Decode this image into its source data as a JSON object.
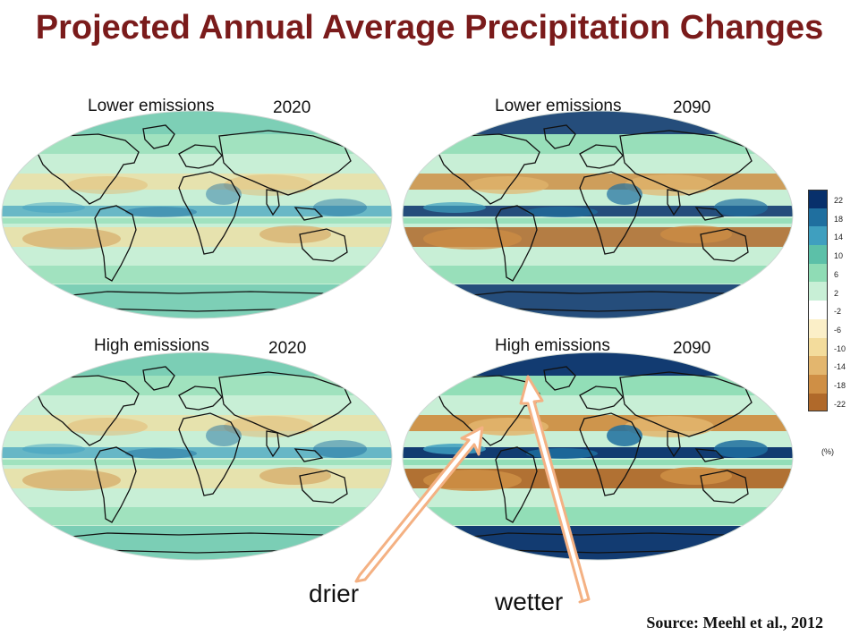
{
  "title": "Projected Annual Average Precipitation Changes",
  "panels": [
    {
      "scenario": "Lower emissions",
      "year": "2020",
      "intensity": 0.35
    },
    {
      "scenario": "Lower emissions",
      "year": "2090",
      "intensity": 0.75
    },
    {
      "scenario": "High emissions",
      "year": "2020",
      "intensity": 0.4
    },
    {
      "scenario": "High emissions",
      "year": "2090",
      "intensity": 1.0
    }
  ],
  "legend": {
    "ticks": [
      "22",
      "18",
      "14",
      "10",
      "6",
      "2",
      "-2",
      "-6",
      "-10",
      "-14",
      "-18",
      "-22"
    ],
    "unit": "(%)",
    "colors": [
      "#08306b",
      "#1f6f9f",
      "#3f9fbf",
      "#5cc0a8",
      "#8fdcb5",
      "#c8efd6",
      "#ffffff",
      "#fbefc8",
      "#f3dc9c",
      "#e3b66e",
      "#cf8f45",
      "#b0692a"
    ]
  },
  "annotations": {
    "drier": "drier",
    "wetter": "wetter",
    "arrow_color": "#f4b183"
  },
  "source": "Source: Meehl et al., 2012"
}
